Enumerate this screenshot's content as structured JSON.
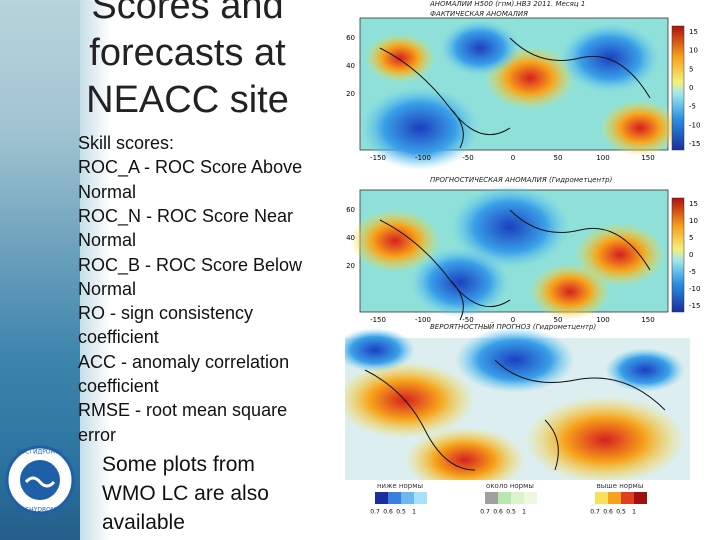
{
  "slide": {
    "title": [
      "Scores and",
      "forecasts at",
      "NEACC site"
    ],
    "body": [
      "Skill scores:",
      "ROC_A - ROC Score Above",
      "Normal",
      "ROC_N - ROC Score Near",
      "Normal",
      "ROC_B - ROC Score Below",
      "Normal",
      "RO - sign consistency",
      "coefficient",
      "ACC - anomaly correlation",
      "coefficient",
      "RMSE - root mean square",
      "error"
    ],
    "footer": [
      "Some plots from",
      "WMO LC are also",
      "available"
    ],
    "logo": {
      "top": "РОСГИДРОМЕТ",
      "bottom": "ROSHYDROMET"
    }
  },
  "maps": [
    {
      "title": [
        "АНОМАЛИИ H500 (гпм).НВЗ 2011. Месяц 1",
        "ФАКТИЧЕСКАЯ АНОМАЛИЯ"
      ],
      "yticks": [
        "60",
        "40",
        "20"
      ],
      "xticks": [
        "-150",
        "-100",
        "-50",
        "0",
        "50",
        "100",
        "150"
      ],
      "colorbar": [
        "15",
        "10",
        "5",
        "0",
        "-5",
        "-10",
        "-15"
      ]
    },
    {
      "title": [
        "ПРОГНОСТИЧЕСКАЯ АНОМАЛИЯ (Гидрометцентр)"
      ],
      "yticks": [
        "60",
        "40",
        "20"
      ],
      "xticks": [
        "-150",
        "-100",
        "-50",
        "0",
        "50",
        "100",
        "150"
      ],
      "colorbar": [
        "15",
        "10",
        "5",
        "0",
        "-5",
        "-10",
        "-15"
      ]
    },
    {
      "title": [
        "ВЕРОЯТНОСТНЫЙ ПРОГНОЗ (Гидрометцентр)"
      ],
      "legend": [
        {
          "label": "ниже нормы",
          "ticks": [
            "0.7",
            "0.6",
            "0.5",
            "1"
          ]
        },
        {
          "label": "около нормы",
          "ticks": [
            "0.7",
            "0.6",
            "0.5",
            "1"
          ]
        },
        {
          "label": "выше нормы",
          "ticks": [
            "0.7",
            "0.6",
            "0.5",
            "1"
          ]
        }
      ]
    }
  ]
}
